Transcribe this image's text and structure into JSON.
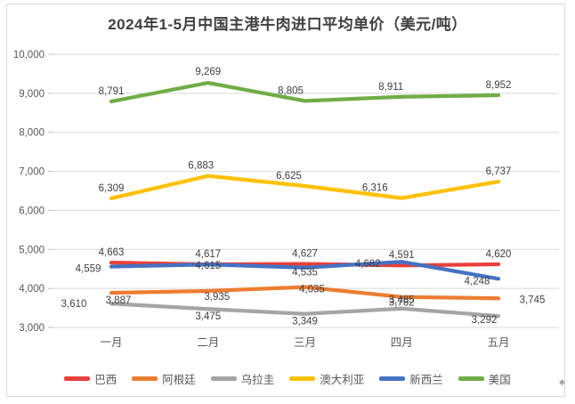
{
  "chart": {
    "title": "2024年1-5月中国主港牛肉进口平均单价（美元/吨）"
  },
  "chart_data": {
    "type": "line",
    "title": "2024年1-5月中国主港牛肉进口平均单价（美元/吨）",
    "categories": [
      "一月",
      "二月",
      "三月",
      "四月",
      "五月"
    ],
    "y_axis": {
      "min": 3000,
      "max": 10000,
      "step": 1000,
      "tick_labels": [
        "10,000",
        "9,000",
        "8,000",
        "7,000",
        "6,000",
        "5,000",
        "4,000",
        "3,000"
      ]
    },
    "grid": true,
    "legend_position": "bottom",
    "colors": {
      "grid": "#d9d9d9",
      "axis_text": "#595959",
      "data_label_text": "#3f3f3f",
      "title_text": "#404040"
    },
    "series": [
      {
        "key": "brazil",
        "name": "巴西",
        "color": "#e8403a",
        "values": [
          4663,
          4617,
          4627,
          4591,
          4620
        ],
        "labels": [
          "4,663",
          "4,617",
          "4,627",
          "4,591",
          "4,620"
        ],
        "label_offsets": [
          [
            0,
            -8
          ],
          [
            0,
            -8
          ],
          [
            0,
            -8
          ],
          [
            0,
            -8
          ],
          [
            0,
            -8
          ]
        ]
      },
      {
        "key": "argentina",
        "name": "阿根廷",
        "color": "#ed7d31",
        "values": [
          3887,
          3935,
          4035,
          3782,
          3745
        ],
        "labels": [
          "3,887",
          "3,935",
          "4,035",
          "3,782",
          "3,745"
        ],
        "label_offsets": [
          [
            8,
            12
          ],
          [
            10,
            10
          ],
          [
            8,
            6
          ],
          [
            0,
            10
          ],
          [
            38,
            5
          ]
        ]
      },
      {
        "key": "uruguay",
        "name": "乌拉圭",
        "color": "#a5a5a5",
        "values": [
          3610,
          3475,
          3349,
          3485,
          3292
        ],
        "labels": [
          "3,610",
          "3,475",
          "3,349",
          "3,485",
          "3,292"
        ],
        "label_offsets": [
          [
            -42,
            4
          ],
          [
            0,
            12
          ],
          [
            0,
            12
          ],
          [
            0,
            -6
          ],
          [
            -16,
            8
          ]
        ]
      },
      {
        "key": "australia",
        "name": "澳大利亚",
        "color": "#ffc000",
        "values": [
          6309,
          6883,
          6625,
          6316,
          6737
        ],
        "labels": [
          "6,309",
          "6,883",
          "6,625",
          "6,316",
          "6,737"
        ],
        "label_offsets": [
          [
            0,
            -8
          ],
          [
            -8,
            -8
          ],
          [
            -18,
            -8
          ],
          [
            -30,
            -8
          ],
          [
            0,
            -8
          ]
        ]
      },
      {
        "key": "new-zealand",
        "name": "新西兰",
        "color": "#4472c4",
        "values": [
          4559,
          4615,
          4535,
          4682,
          4248
        ],
        "labels": [
          "4,559",
          "4,615",
          "4,535",
          "4,682",
          "4,248"
        ],
        "label_offsets": [
          [
            -26,
            6
          ],
          [
            0,
            5
          ],
          [
            0,
            9
          ],
          [
            -38,
            6
          ],
          [
            -24,
            6
          ]
        ]
      },
      {
        "key": "usa",
        "name": "美国",
        "color": "#70ad47",
        "values": [
          8791,
          9269,
          8805,
          8911,
          8952
        ],
        "labels": [
          "8,791",
          "9,269",
          "8,805",
          "8,911",
          "8,952"
        ],
        "label_offsets": [
          [
            0,
            -8
          ],
          [
            0,
            -9
          ],
          [
            -16,
            -8
          ],
          [
            -12,
            -8
          ],
          [
            0,
            -8
          ]
        ]
      }
    ]
  },
  "decorations": {
    "cursor_mark": "◆"
  }
}
